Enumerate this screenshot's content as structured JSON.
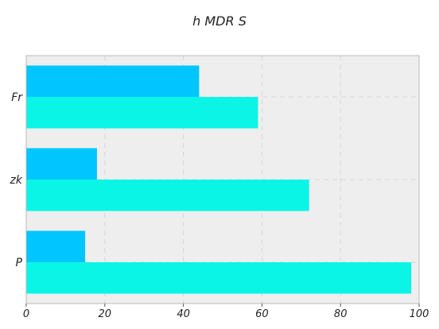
{
  "chart_data": {
    "type": "bar",
    "orientation": "horizontal",
    "title": "h MDR S",
    "xlabel": "",
    "ylabel": "",
    "categories": [
      "P",
      "zk",
      "Fr"
    ],
    "series": [
      {
        "values": [
          98,
          72,
          59
        ],
        "color": "#0af5e6"
      },
      {
        "values": [
          15,
          18,
          44
        ],
        "color": "#00c5ff"
      }
    ],
    "xlim": [
      0,
      100
    ],
    "xticks": [
      0,
      20,
      40,
      60,
      80,
      100
    ],
    "grid": true,
    "legend": "none"
  },
  "colors": {
    "plot_background": "#eeeeee",
    "grid": "#d6d6d6",
    "axis_frame": "#bbbbbb"
  }
}
